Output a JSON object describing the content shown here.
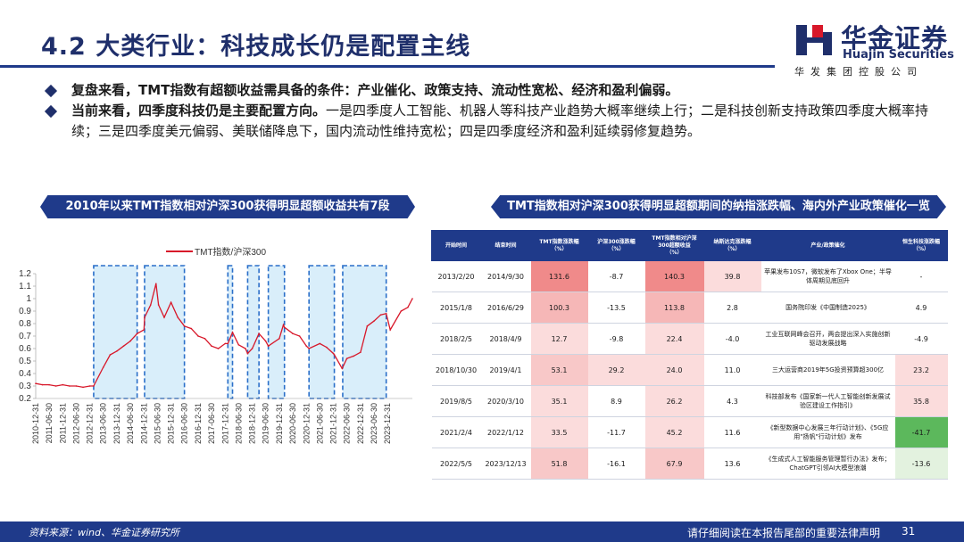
{
  "title": "4.2 大类行业：科技成长仍是配置主线",
  "logo": {
    "cn": "华金证券",
    "en": "Huajin Securities",
    "sub": "华发集团控股公司"
  },
  "bullets": [
    {
      "lead": "复盘来看，TMT指数有超额收益需具备的条件：",
      "rest": "产业催化、政策支持、流动性宽松、经济和盈利偏弱。",
      "rest_bold": true
    },
    {
      "lead": "当前来看，四季度科技仍是主要配置方向。",
      "rest": "一是四季度人工智能、机器人等科技产业趋势大概率继续上行；二是科技创新支持政策四季度大概率持续；三是四季度美元偏弱、美联储降息下，国内流动性维持宽松；四是四季度经济和盈利延续弱修复趋势。",
      "rest_bold": false
    }
  ],
  "left_banner": "2010年以来TMT指数相对沪深300获得明显超额收益共有7段",
  "right_banner": "TMT指数相对沪深300获得明显超额期间的纳指涨跌幅、海内外产业政策催化一览",
  "colors": {
    "navy": "#1f3a8a",
    "line": "#d8182a",
    "shade": "#d9eefa",
    "box": "#2a6fc9",
    "red_strong": "#f08a8a",
    "red_mid": "#f6b7b7",
    "red_light": "#fbdcdc",
    "green_strong": "#5cb85c",
    "green_light": "#e3f2df"
  },
  "chart_data": {
    "type": "line",
    "series": [
      {
        "name": "TMT指数/沪深300"
      }
    ],
    "ylim": [
      0.2,
      1.2
    ],
    "yticks": [
      "0.2",
      "0.3",
      "0.4",
      "0.5",
      "0.6",
      "0.7",
      "0.8",
      "0.9",
      "1",
      "1.1",
      "1.2"
    ],
    "xticks": [
      "2010-12-31",
      "2011-06-30",
      "2011-12-31",
      "2012-06-30",
      "2012-12-31",
      "2013-06-30",
      "2013-12-31",
      "2014-06-30",
      "2014-12-31",
      "2015-06-30",
      "2015-12-31",
      "2016-06-30",
      "2016-12-31",
      "2017-06-30",
      "2017-12-31",
      "2018-06-30",
      "2018-12-31",
      "2019-06-30",
      "2019-12-31",
      "2020-06-30",
      "2020-12-31",
      "2021-06-30",
      "2021-12-31",
      "2022-06-30",
      "2022-12-31",
      "2023-06-30",
      "2023-12-31"
    ],
    "x": [
      "2010-12-31",
      "2011-03-31",
      "2011-06-30",
      "2011-09-30",
      "2011-12-31",
      "2012-03-31",
      "2012-06-30",
      "2012-09-30",
      "2012-12-31",
      "2013-02-20",
      "2013-06-30",
      "2013-09-30",
      "2013-12-31",
      "2014-03-31",
      "2014-06-30",
      "2014-09-30",
      "2014-12-31",
      "2015-01-08",
      "2015-03-31",
      "2015-06-12",
      "2015-07-15",
      "2015-09-30",
      "2015-12-31",
      "2016-03-31",
      "2016-06-29",
      "2016-09-30",
      "2016-12-31",
      "2017-03-31",
      "2017-06-30",
      "2017-09-30",
      "2017-12-31",
      "2018-02-05",
      "2018-04-09",
      "2018-06-30",
      "2018-09-30",
      "2018-10-30",
      "2018-12-31",
      "2019-04-01",
      "2019-06-30",
      "2019-08-05",
      "2019-12-31",
      "2020-02-25",
      "2020-03-10",
      "2020-06-30",
      "2020-09-30",
      "2020-12-31",
      "2021-02-04",
      "2021-06-30",
      "2021-09-30",
      "2021-12-31",
      "2022-01-12",
      "2022-04-27",
      "2022-06-30",
      "2022-09-30",
      "2022-12-31",
      "2023-03-31",
      "2023-06-30",
      "2023-09-30",
      "2023-12-13",
      "2024-02-05",
      "2024-06-30",
      "2024-09-30",
      "2024-11-30"
    ],
    "y": [
      0.32,
      0.31,
      0.31,
      0.3,
      0.31,
      0.3,
      0.3,
      0.29,
      0.3,
      0.3,
      0.45,
      0.55,
      0.58,
      0.62,
      0.66,
      0.72,
      0.75,
      0.85,
      0.95,
      1.12,
      0.95,
      0.85,
      0.97,
      0.85,
      0.78,
      0.76,
      0.7,
      0.68,
      0.62,
      0.6,
      0.64,
      0.64,
      0.73,
      0.63,
      0.6,
      0.56,
      0.6,
      0.72,
      0.66,
      0.62,
      0.68,
      0.79,
      0.77,
      0.72,
      0.7,
      0.62,
      0.6,
      0.64,
      0.61,
      0.56,
      0.55,
      0.44,
      0.52,
      0.54,
      0.57,
      0.78,
      0.82,
      0.87,
      0.88,
      0.75,
      0.9,
      0.93,
      1.0
    ],
    "shaded_periods": [
      [
        "2013-02-20",
        "2014-09-30"
      ],
      [
        "2015-01-08",
        "2016-06-29"
      ],
      [
        "2018-02-05",
        "2018-04-09"
      ],
      [
        "2018-10-30",
        "2019-04-01"
      ],
      [
        "2019-08-05",
        "2020-03-10"
      ],
      [
        "2021-02-04",
        "2022-01-12"
      ],
      [
        "2022-05-05",
        "2023-12-13"
      ]
    ],
    "grid": false,
    "legend": "top-left"
  },
  "table": {
    "headers": [
      "开始时间",
      "结束时间",
      "TMT指数涨跌幅\n（%）",
      "沪深300涨跌幅\n（%）",
      "TMT指数相对沪深\n300超额收益\n（%）",
      "纳斯达克涨跌幅\n（%）",
      "产业/政策催化",
      "恒生科技涨跌幅\n（%）"
    ],
    "rows": [
      {
        "start": "2013/2/20",
        "end": "2014/9/30",
        "tmt": "131.6",
        "hs300": "-8.7",
        "excess": "140.3",
        "nasdaq": "39.8",
        "policy": "苹果发布10S7，微软发布了Xbox One；半导体周期见底回升",
        "hstech": "-",
        "tmt_c": "#f08a8a",
        "hs_c": "#ffffff",
        "ex_c": "#f08a8a",
        "nq_c": "#fbdcdc",
        "hk_c": "#ffffff"
      },
      {
        "start": "2015/1/8",
        "end": "2016/6/29",
        "tmt": "100.3",
        "hs300": "-13.5",
        "excess": "113.8",
        "nasdaq": "2.8",
        "policy": "国务院印发《中国制造2025》",
        "hstech": "4.9",
        "tmt_c": "#f6b7b7",
        "hs_c": "#ffffff",
        "ex_c": "#f6b7b7",
        "nq_c": "#ffffff",
        "hk_c": "#ffffff"
      },
      {
        "start": "2018/2/5",
        "end": "2018/4/9",
        "tmt": "12.7",
        "hs300": "-9.8",
        "excess": "22.4",
        "nasdaq": "-4.0",
        "policy": "工业互联网峰会召开，两会提出深入实施创新驱动发展战略",
        "hstech": "-4.9",
        "tmt_c": "#fbdcdc",
        "hs_c": "#ffffff",
        "ex_c": "#fbdcdc",
        "nq_c": "#ffffff",
        "hk_c": "#ffffff"
      },
      {
        "start": "2018/10/30",
        "end": "2019/4/1",
        "tmt": "53.1",
        "hs300": "29.2",
        "excess": "24.0",
        "nasdaq": "11.0",
        "policy": "三大运营商2019年5G投资预算超300亿",
        "hstech": "23.2",
        "tmt_c": "#f8c8c8",
        "hs_c": "#fbdcdc",
        "ex_c": "#fbdcdc",
        "nq_c": "#ffffff",
        "hk_c": "#fbdcdc"
      },
      {
        "start": "2019/8/5",
        "end": "2020/3/10",
        "tmt": "35.1",
        "hs300": "8.9",
        "excess": "26.2",
        "nasdaq": "4.3",
        "policy": "科技部发布《国家新一代人工智能创新发展试验区建设工作指引》",
        "hstech": "35.8",
        "tmt_c": "#fbdcdc",
        "hs_c": "#ffffff",
        "ex_c": "#fbdcdc",
        "nq_c": "#ffffff",
        "hk_c": "#fbdcdc"
      },
      {
        "start": "2021/2/4",
        "end": "2022/1/12",
        "tmt": "33.5",
        "hs300": "-11.7",
        "excess": "45.2",
        "nasdaq": "11.6",
        "policy": "《新型数据中心发展三年行动计划》、《5G应用\"扬帆\"行动计划》发布",
        "hstech": "-41.7",
        "tmt_c": "#fbdcdc",
        "hs_c": "#ffffff",
        "ex_c": "#fbdcdc",
        "nq_c": "#ffffff",
        "hk_c": "#5cb85c"
      },
      {
        "start": "2022/5/5",
        "end": "2023/12/13",
        "tmt": "51.8",
        "hs300": "-16.1",
        "excess": "67.9",
        "nasdaq": "13.6",
        "policy": "《生成式人工智能服务管理暂行办法》发布；ChatGPT引领AI大模型浪潮",
        "hstech": "-13.6",
        "tmt_c": "#f8c8c8",
        "hs_c": "#ffffff",
        "ex_c": "#f8c8c8",
        "nq_c": "#ffffff",
        "hk_c": "#e3f2df"
      }
    ]
  },
  "footer": {
    "source": "资料来源：wind、华金证券研究所",
    "note": "请仔细阅读在本报告尾部的重要法律声明",
    "page": "31"
  }
}
